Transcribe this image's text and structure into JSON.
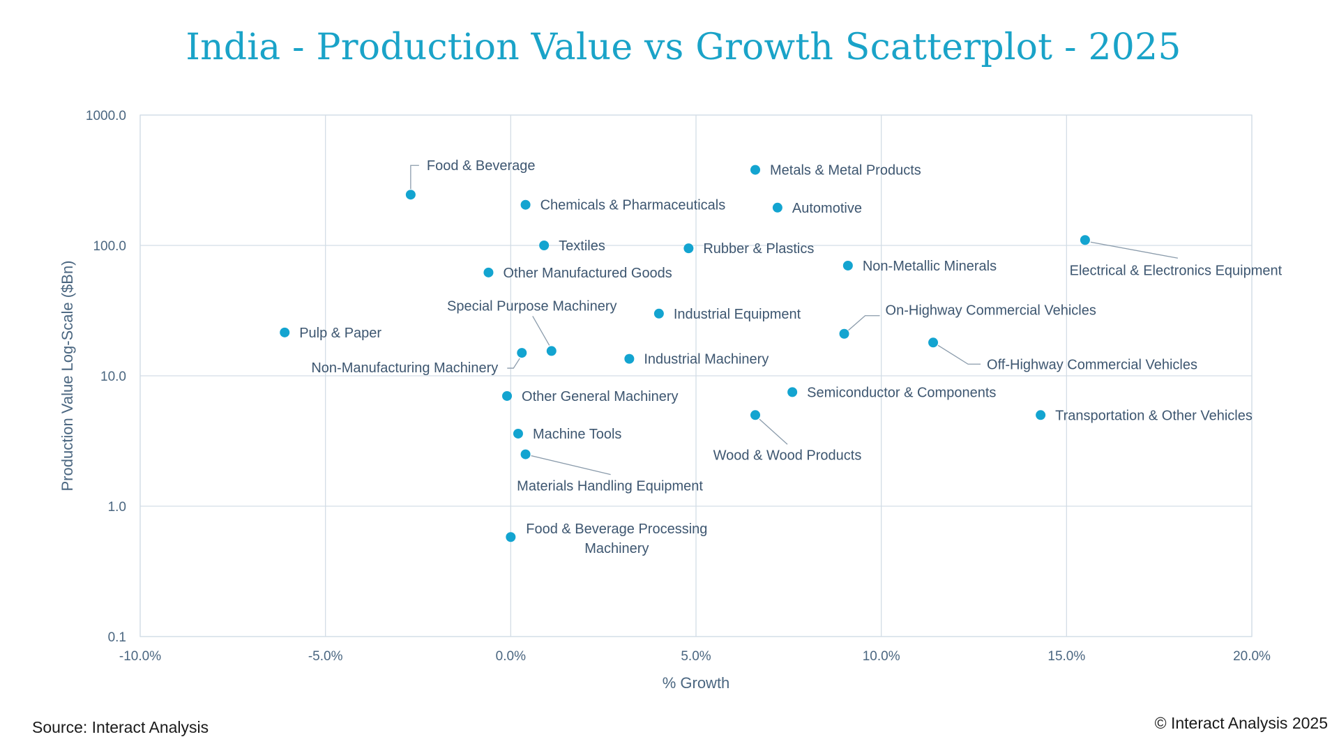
{
  "chart_data": {
    "type": "scatter",
    "title": "India - Production Value vs Growth Scatterplot - 2025",
    "xlabel": "% Growth",
    "ylabel": "Production Value Log-Scale ($Bn)",
    "xlim": [
      -0.1,
      0.2
    ],
    "ylim": [
      0.1,
      1000
    ],
    "yscale": "log",
    "x_ticks": [
      "-10.0%",
      "-5.0%",
      "0.0%",
      "5.0%",
      "10.0%",
      "15.0%",
      "20.0%"
    ],
    "y_ticks": [
      "0.1",
      "1.0",
      "10.0",
      "100.0",
      "1000.0"
    ],
    "grid": true,
    "marker_color": "#13a4d0",
    "points": [
      {
        "label": "Food & Beverage",
        "x": -0.027,
        "y": 245
      },
      {
        "label": "Metals & Metal Products",
        "x": 0.066,
        "y": 380
      },
      {
        "label": "Chemicals & Pharmaceuticals",
        "x": 0.004,
        "y": 205
      },
      {
        "label": "Automotive",
        "x": 0.072,
        "y": 195
      },
      {
        "label": "Textiles",
        "x": 0.009,
        "y": 100
      },
      {
        "label": "Rubber & Plastics",
        "x": 0.048,
        "y": 95
      },
      {
        "label": "Electrical & Electronics Equipment",
        "x": 0.155,
        "y": 110
      },
      {
        "label": "Non-Metallic Minerals",
        "x": 0.091,
        "y": 70
      },
      {
        "label": "Other Manufactured Goods",
        "x": -0.006,
        "y": 62
      },
      {
        "label": "Special Purpose Machinery",
        "x": 0.011,
        "y": 15.5
      },
      {
        "label": "Industrial Equipment",
        "x": 0.04,
        "y": 30
      },
      {
        "label": "On-Highway Commercial Vehicles",
        "x": 0.09,
        "y": 21
      },
      {
        "label": "Pulp & Paper",
        "x": -0.061,
        "y": 21.5
      },
      {
        "label": "Off-Highway Commercial Vehicles",
        "x": 0.114,
        "y": 18
      },
      {
        "label": "Non-Manufacturing Machinery",
        "x": 0.003,
        "y": 15
      },
      {
        "label": "Industrial Machinery",
        "x": 0.032,
        "y": 13.5
      },
      {
        "label": "Other General Machinery",
        "x": -0.001,
        "y": 7.0
      },
      {
        "label": "Semiconductor & Components",
        "x": 0.076,
        "y": 7.5
      },
      {
        "label": "Transportation & Other Vehicles",
        "x": 0.143,
        "y": 5.0
      },
      {
        "label": "Wood & Wood Products",
        "x": 0.066,
        "y": 5.0
      },
      {
        "label": "Machine Tools",
        "x": 0.002,
        "y": 3.6
      },
      {
        "label": "Materials Handling Equipment",
        "x": 0.004,
        "y": 2.5
      },
      {
        "label": "Food & Beverage Processing Machinery",
        "x": 0.0,
        "y": 0.58
      }
    ]
  },
  "footer": {
    "source": "Source: Interact Analysis",
    "copyright": "© Interact Analysis 2025"
  }
}
